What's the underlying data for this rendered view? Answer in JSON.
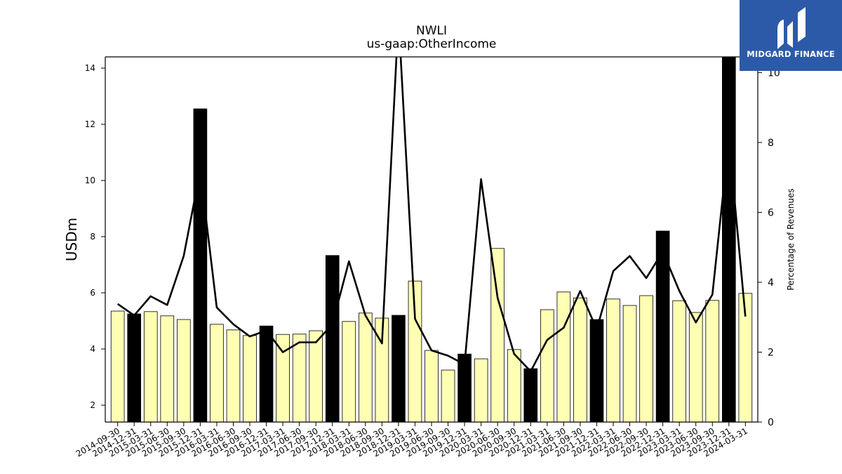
{
  "chart_data": {
    "type": "bar",
    "title": "NWLI",
    "subtitle": "us-gaap:OtherIncome",
    "ylabel": "USDm",
    "y2label": "Percentage of Revenues",
    "ylim": [
      1.4,
      14.4
    ],
    "y2lim": [
      0,
      10.45
    ],
    "yticks": [
      "2",
      "4",
      "6",
      "8",
      "10",
      "12",
      "14"
    ],
    "y2ticks": [
      "0",
      "2",
      "4",
      "6",
      "8",
      "10"
    ],
    "grid": false,
    "categories": [
      "2014-09-30",
      "2014-12-31",
      "2015-03-31",
      "2015-06-30",
      "2015-09-30",
      "2015-12-31",
      "2016-03-31",
      "2016-06-30",
      "2016-09-30",
      "2016-12-31",
      "2017-03-31",
      "2017-06-30",
      "2017-09-30",
      "2017-12-31",
      "2018-03-31",
      "2018-06-30",
      "2018-09-30",
      "2018-12-31",
      "2019-03-31",
      "2019-06-30",
      "2019-09-30",
      "2019-12-31",
      "2020-03-31",
      "2020-06-30",
      "2020-09-30",
      "2020-12-31",
      "2021-03-31",
      "2021-06-30",
      "2021-09-30",
      "2021-12-31",
      "2022-03-31",
      "2022-06-30",
      "2022-09-30",
      "2022-12-31",
      "2023-03-31",
      "2023-06-30",
      "2023-09-30",
      "2023-12-31",
      "2024-03-31"
    ],
    "series": [
      {
        "kind": "bar",
        "axis": "left",
        "values": [
          5.35,
          5.25,
          5.33,
          5.18,
          5.05,
          12.55,
          4.88,
          4.68,
          4.48,
          4.82,
          4.52,
          4.53,
          4.65,
          7.33,
          4.98,
          5.28,
          5.1,
          5.2,
          6.42,
          3.95,
          3.25,
          3.82,
          3.65,
          7.58,
          3.98,
          3.3,
          5.4,
          6.03,
          5.82,
          5.05,
          5.78,
          5.55,
          5.9,
          8.2,
          5.72,
          5.3,
          5.73,
          14.5,
          5.98
        ],
        "colors": [
          "#ffffb3",
          "#000000",
          "#ffffb3",
          "#ffffb3",
          "#ffffb3",
          "#000000",
          "#ffffb3",
          "#ffffb3",
          "#ffffb3",
          "#000000",
          "#ffffb3",
          "#ffffb3",
          "#ffffb3",
          "#000000",
          "#ffffb3",
          "#ffffb3",
          "#ffffb3",
          "#000000",
          "#ffffb3",
          "#ffffb3",
          "#ffffb3",
          "#000000",
          "#ffffb3",
          "#ffffb3",
          "#ffffb3",
          "#000000",
          "#ffffb3",
          "#ffffb3",
          "#ffffb3",
          "#000000",
          "#ffffb3",
          "#ffffb3",
          "#ffffb3",
          "#000000",
          "#ffffb3",
          "#ffffb3",
          "#ffffb3",
          "#000000",
          "#ffffb3"
        ]
      },
      {
        "kind": "line",
        "axis": "right",
        "color": "#000000",
        "values": [
          3.38,
          3.05,
          3.6,
          3.35,
          4.75,
          7.2,
          3.28,
          2.8,
          2.45,
          2.62,
          2.0,
          2.28,
          2.28,
          2.8,
          4.6,
          3.05,
          2.25,
          11.6,
          2.95,
          2.05,
          1.9,
          1.65,
          6.95,
          3.55,
          1.95,
          1.45,
          2.35,
          2.7,
          3.75,
          2.65,
          4.32,
          4.75,
          4.12,
          4.88,
          3.75,
          2.85,
          3.65,
          8.1,
          3.02
        ]
      }
    ]
  },
  "logo": {
    "brand": "MIDGARD FINANCE",
    "icon": "midgard-logo-icon",
    "background": "#2c5aa8"
  }
}
